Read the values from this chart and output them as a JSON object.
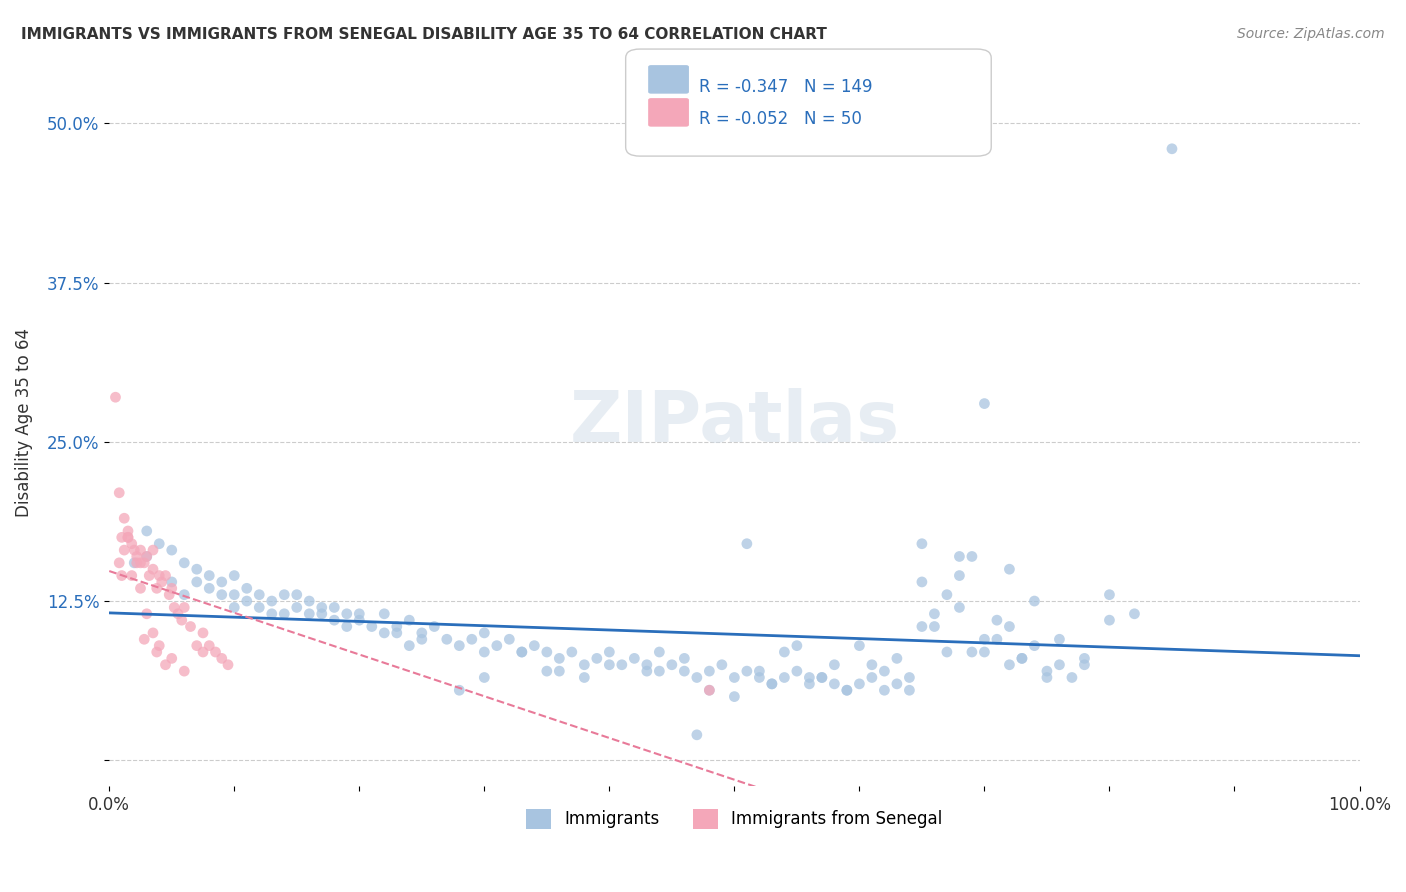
{
  "title": "IMMIGRANTS VS IMMIGRANTS FROM SENEGAL DISABILITY AGE 35 TO 64 CORRELATION CHART",
  "source": "Source: ZipAtlas.com",
  "xlabel": "",
  "ylabel": "Disability Age 35 to 64",
  "xlim": [
    0.0,
    1.0
  ],
  "ylim": [
    -0.02,
    0.55
  ],
  "yticks": [
    0.0,
    0.125,
    0.25,
    0.375,
    0.5
  ],
  "ytick_labels": [
    "",
    "12.5%",
    "25.0%",
    "37.5%",
    "50.0%"
  ],
  "xticks": [
    0.0,
    0.1,
    0.2,
    0.3,
    0.4,
    0.5,
    0.6,
    0.7,
    0.8,
    0.9,
    1.0
  ],
  "xtick_labels": [
    "0.0%",
    "",
    "",
    "",
    "",
    "",
    "",
    "",
    "",
    "",
    "100.0%"
  ],
  "legend_labels": [
    "Immigrants",
    "Immigrants from Senegal"
  ],
  "R_blue": -0.347,
  "N_blue": 149,
  "R_pink": -0.052,
  "N_pink": 50,
  "blue_color": "#a8c4e0",
  "pink_color": "#f4a7b9",
  "blue_line_color": "#2a6ebb",
  "pink_line_color": "#e87a99",
  "watermark": "ZIPatlas",
  "background_color": "#ffffff",
  "scatter_alpha": 0.75,
  "scatter_size": 60,
  "blue_scatter_x": [
    0.02,
    0.03,
    0.03,
    0.04,
    0.05,
    0.05,
    0.06,
    0.06,
    0.07,
    0.07,
    0.08,
    0.08,
    0.09,
    0.09,
    0.1,
    0.1,
    0.1,
    0.11,
    0.11,
    0.12,
    0.12,
    0.13,
    0.13,
    0.14,
    0.14,
    0.15,
    0.15,
    0.16,
    0.16,
    0.17,
    0.17,
    0.18,
    0.18,
    0.19,
    0.19,
    0.2,
    0.2,
    0.21,
    0.22,
    0.22,
    0.23,
    0.23,
    0.24,
    0.24,
    0.25,
    0.25,
    0.26,
    0.27,
    0.28,
    0.29,
    0.3,
    0.3,
    0.31,
    0.32,
    0.33,
    0.34,
    0.35,
    0.36,
    0.37,
    0.38,
    0.39,
    0.4,
    0.41,
    0.42,
    0.43,
    0.44,
    0.45,
    0.46,
    0.47,
    0.48,
    0.49,
    0.5,
    0.51,
    0.52,
    0.53,
    0.54,
    0.55,
    0.56,
    0.57,
    0.58,
    0.59,
    0.6,
    0.61,
    0.62,
    0.63,
    0.64,
    0.65,
    0.66,
    0.67,
    0.68,
    0.69,
    0.7,
    0.71,
    0.72,
    0.73,
    0.74,
    0.75,
    0.76,
    0.77,
    0.78,
    0.65,
    0.7,
    0.72,
    0.74,
    0.76,
    0.8,
    0.8,
    0.78,
    0.75,
    0.82,
    0.68,
    0.7,
    0.72,
    0.65,
    0.68,
    0.71,
    0.73,
    0.66,
    0.6,
    0.62,
    0.64,
    0.67,
    0.55,
    0.58,
    0.53,
    0.56,
    0.5,
    0.43,
    0.46,
    0.48,
    0.52,
    0.54,
    0.57,
    0.59,
    0.61,
    0.63,
    0.69,
    0.85,
    0.51,
    0.44,
    0.47,
    0.4,
    0.35,
    0.38,
    0.33,
    0.36,
    0.3,
    0.28
  ],
  "blue_scatter_y": [
    0.155,
    0.18,
    0.16,
    0.17,
    0.165,
    0.14,
    0.155,
    0.13,
    0.14,
    0.15,
    0.145,
    0.135,
    0.13,
    0.14,
    0.13,
    0.12,
    0.145,
    0.125,
    0.135,
    0.12,
    0.13,
    0.115,
    0.125,
    0.115,
    0.13,
    0.12,
    0.13,
    0.115,
    0.125,
    0.12,
    0.115,
    0.11,
    0.12,
    0.115,
    0.105,
    0.11,
    0.115,
    0.105,
    0.1,
    0.115,
    0.105,
    0.1,
    0.09,
    0.11,
    0.095,
    0.1,
    0.105,
    0.095,
    0.09,
    0.095,
    0.1,
    0.085,
    0.09,
    0.095,
    0.085,
    0.09,
    0.085,
    0.08,
    0.085,
    0.075,
    0.08,
    0.085,
    0.075,
    0.08,
    0.075,
    0.07,
    0.075,
    0.07,
    0.065,
    0.07,
    0.075,
    0.065,
    0.07,
    0.065,
    0.06,
    0.065,
    0.07,
    0.06,
    0.065,
    0.06,
    0.055,
    0.06,
    0.065,
    0.055,
    0.06,
    0.055,
    0.105,
    0.115,
    0.13,
    0.145,
    0.085,
    0.095,
    0.11,
    0.075,
    0.08,
    0.09,
    0.07,
    0.075,
    0.065,
    0.08,
    0.17,
    0.28,
    0.15,
    0.125,
    0.095,
    0.13,
    0.11,
    0.075,
    0.065,
    0.115,
    0.16,
    0.085,
    0.105,
    0.14,
    0.12,
    0.095,
    0.08,
    0.105,
    0.09,
    0.07,
    0.065,
    0.085,
    0.09,
    0.075,
    0.06,
    0.065,
    0.05,
    0.07,
    0.08,
    0.055,
    0.07,
    0.085,
    0.065,
    0.055,
    0.075,
    0.08,
    0.16,
    0.48,
    0.17,
    0.085,
    0.02,
    0.075,
    0.07,
    0.065,
    0.085,
    0.07,
    0.065,
    0.055
  ],
  "pink_scatter_x": [
    0.005,
    0.008,
    0.01,
    0.012,
    0.015,
    0.015,
    0.018,
    0.02,
    0.022,
    0.025,
    0.025,
    0.028,
    0.03,
    0.032,
    0.035,
    0.035,
    0.038,
    0.04,
    0.042,
    0.045,
    0.048,
    0.05,
    0.052,
    0.055,
    0.058,
    0.06,
    0.065,
    0.07,
    0.075,
    0.08,
    0.085,
    0.09,
    0.095,
    0.01,
    0.008,
    0.012,
    0.015,
    0.018,
    0.022,
    0.025,
    0.028,
    0.03,
    0.035,
    0.038,
    0.04,
    0.045,
    0.05,
    0.48,
    0.075,
    0.06
  ],
  "pink_scatter_y": [
    0.285,
    0.21,
    0.175,
    0.19,
    0.175,
    0.18,
    0.17,
    0.165,
    0.16,
    0.155,
    0.165,
    0.155,
    0.16,
    0.145,
    0.15,
    0.165,
    0.135,
    0.145,
    0.14,
    0.145,
    0.13,
    0.135,
    0.12,
    0.115,
    0.11,
    0.12,
    0.105,
    0.09,
    0.1,
    0.09,
    0.085,
    0.08,
    0.075,
    0.145,
    0.155,
    0.165,
    0.175,
    0.145,
    0.155,
    0.135,
    0.095,
    0.115,
    0.1,
    0.085,
    0.09,
    0.075,
    0.08,
    0.055,
    0.085,
    0.07
  ]
}
